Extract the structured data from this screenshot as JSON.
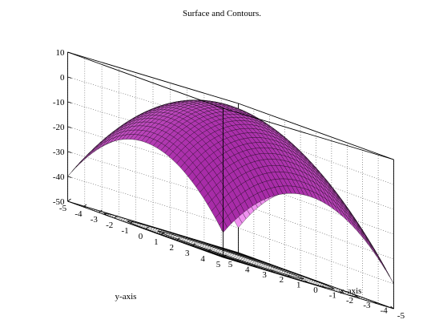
{
  "chart_data": {
    "type": "surface",
    "title": "Surface and Contours.",
    "xlabel": "x-axis",
    "ylabel": "y-axis",
    "zlabel": "",
    "xlim": [
      -5,
      5
    ],
    "ylim": [
      -5,
      5
    ],
    "zlim": [
      -50,
      10
    ],
    "x_ticks": [
      -5,
      -4,
      -3,
      -2,
      -1,
      0,
      1,
      2,
      3,
      4,
      5
    ],
    "y_ticks": [
      -5,
      -4,
      -3,
      -2,
      -1,
      0,
      1,
      2,
      3,
      4,
      5
    ],
    "z_ticks": [
      10,
      0,
      -10,
      -20,
      -30,
      -40,
      -50
    ],
    "surface": {
      "function": "z = 10 - x^2 - y^2",
      "grid_n": 41
    },
    "contours": {
      "z_plane": -50,
      "levels": [
        -40,
        -30,
        -20,
        -10,
        0,
        10
      ]
    },
    "grid": true,
    "colors": {
      "surface_light": "#ffa6ff",
      "surface_mid": "#ee66ee",
      "surface_dark": "#a82ca8",
      "mesh": "#000000",
      "axes": "#000000",
      "grid": "#555555"
    }
  }
}
